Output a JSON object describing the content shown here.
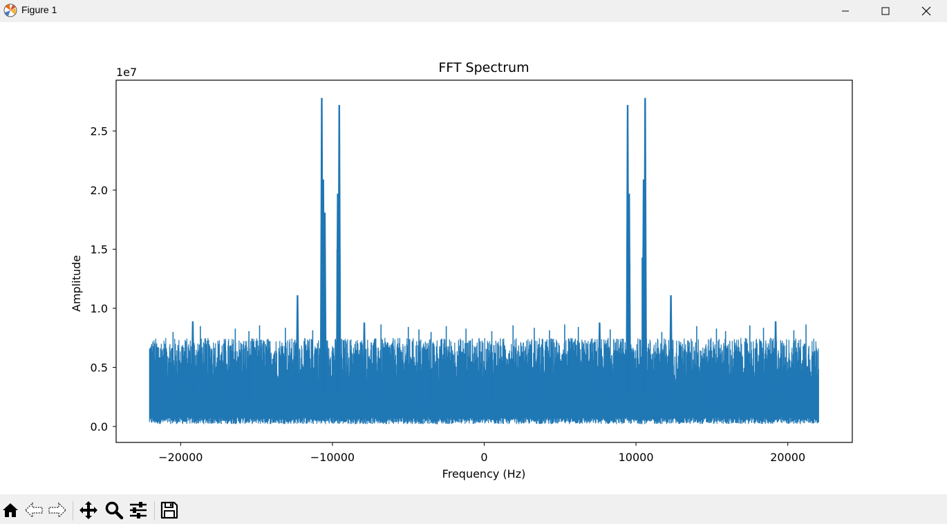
{
  "window": {
    "title": "Figure 1"
  },
  "toolbar": {
    "tools": [
      "home-icon",
      "back-arrow-icon",
      "forward-arrow-icon",
      "pan-icon",
      "zoom-icon",
      "configure-subplots-icon",
      "save-icon"
    ]
  },
  "colors": {
    "line": "#1f77b4",
    "titlebar": "#f0f0f0",
    "toolbar": "#f0f0f0"
  },
  "chart_data": {
    "type": "line",
    "title": "FFT Spectrum",
    "xlabel": "Frequency (Hz)",
    "ylabel": "Amplitude",
    "offset_text": "1e7",
    "xlim": [
      -24250,
      24250
    ],
    "ylim": [
      -0.135,
      2.93
    ],
    "xticks": [
      -20000,
      -10000,
      0,
      10000,
      20000
    ],
    "xtick_labels": [
      "−20000",
      "−10000",
      "0",
      "10000",
      "20000"
    ],
    "yticks": [
      0.0,
      0.5,
      1.0,
      1.5,
      2.0,
      2.5
    ],
    "ytick_labels": [
      "0.0",
      "0.5",
      "1.0",
      "1.5",
      "2.0",
      "2.5"
    ],
    "x_range": [
      -22050,
      22050
    ],
    "noise_floor_max": 0.75,
    "peaks": [
      {
        "x": -10700,
        "y": 2.78
      },
      {
        "x": -10600,
        "y": 2.09
      },
      {
        "x": -10500,
        "y": 1.81
      },
      {
        "x": -9550,
        "y": 2.72
      },
      {
        "x": -9650,
        "y": 1.97
      },
      {
        "x": -12300,
        "y": 1.11
      },
      {
        "x": -19200,
        "y": 0.89
      },
      {
        "x": -7900,
        "y": 0.88
      },
      {
        "x": 9450,
        "y": 2.72
      },
      {
        "x": 9550,
        "y": 1.97
      },
      {
        "x": 10500,
        "y": 2.09
      },
      {
        "x": 10600,
        "y": 2.78
      },
      {
        "x": 12300,
        "y": 1.11
      },
      {
        "x": 19200,
        "y": 0.89
      },
      {
        "x": 7600,
        "y": 0.88
      }
    ]
  }
}
